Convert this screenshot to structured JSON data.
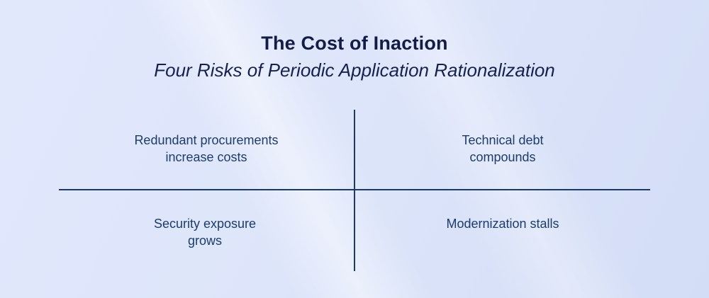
{
  "header": {
    "title": "The Cost of Inaction",
    "subtitle": "Four Risks of Periodic Application Rationalization"
  },
  "quadrants": {
    "top_left": {
      "lines": [
        "Redundant procurements",
        "increase costs"
      ]
    },
    "top_right": {
      "lines": [
        "Technical debt",
        "compounds"
      ]
    },
    "bottom_left": {
      "lines": [
        "Security exposure",
        "grows"
      ]
    },
    "bottom_right": {
      "lines": [
        "Modernization stalls",
        ""
      ]
    }
  },
  "colors": {
    "background": "#dde5fa",
    "background_dark_corner": "#d3ddf6",
    "streak_highlight": "#ffffff",
    "title_text": "#131c44",
    "quadrant_text": "#1d3c6b",
    "divider_line": "#1b3a66"
  }
}
